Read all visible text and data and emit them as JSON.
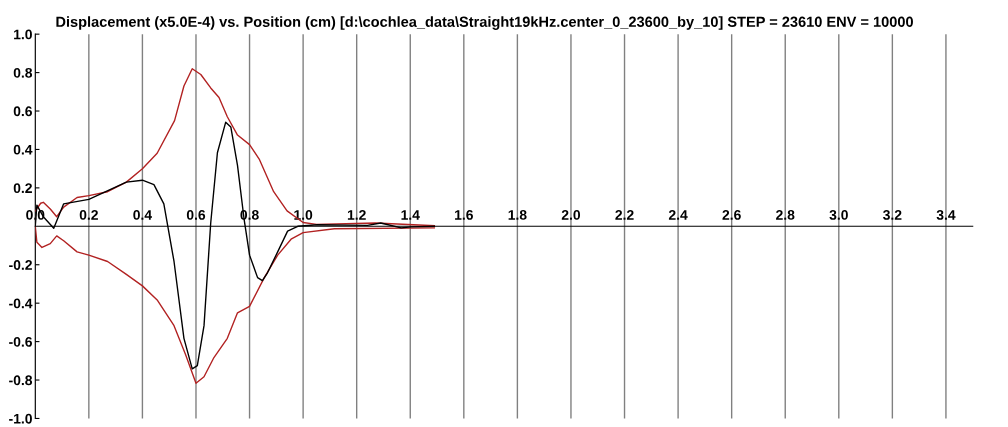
{
  "chart_data": {
    "type": "line",
    "title": "Displacement (x5.0E-4) vs. Position (cm) [d:\\cochlea_data\\Straight19kHz.center_0_23600_by_10] STEP = 23610 ENV = 10000",
    "xlim": [
      0,
      3.5
    ],
    "ylim": [
      -1,
      1
    ],
    "xticks": [
      {
        "value": 0,
        "label": "0.0"
      },
      0.2,
      0.4,
      0.6,
      0.8,
      {
        "value": 1,
        "label": "1.0"
      },
      1.2,
      1.4,
      1.6,
      1.8,
      {
        "value": 2,
        "label": "2.0"
      },
      2.2,
      2.4,
      2.6,
      2.8,
      {
        "value": 3,
        "label": "3.0"
      },
      3.2,
      3.4
    ],
    "yticks": [
      {
        "value": 1,
        "label": "1.0"
      },
      0.8,
      0.6,
      0.4,
      0.2,
      -0.2,
      -0.4,
      -0.6,
      -0.8,
      {
        "value": -1,
        "label": "-1.0"
      }
    ],
    "grid": "x",
    "line_style": "solid",
    "marker": "none",
    "series": [
      {
        "color": "#b22222",
        "x": [
          0,
          0.02,
          0.03,
          0.056,
          0.08,
          0.106,
          0.156,
          0.2,
          0.27,
          0.34,
          0.4,
          0.455,
          0.52,
          0.555,
          0.586,
          0.618,
          0.655,
          0.686,
          0.717,
          0.755,
          0.8,
          0.836,
          0.89,
          0.94,
          1.0,
          1.05,
          1.27,
          1.49
        ],
        "values": [
          0.08,
          0.12,
          0.125,
          0.09,
          0.05,
          0.1,
          0.15,
          0.16,
          0.18,
          0.23,
          0.3,
          0.38,
          0.55,
          0.73,
          0.82,
          0.79,
          0.72,
          0.67,
          0.57,
          0.475,
          0.425,
          0.35,
          0.18,
          0.08,
          0.02,
          0.01,
          0.017,
          0.003
        ]
      },
      {
        "color": "#b22222",
        "x": [
          0,
          0.006,
          0.025,
          0.056,
          0.08,
          0.106,
          0.156,
          0.2,
          0.27,
          0.34,
          0.4,
          0.455,
          0.518,
          0.561,
          0.6,
          0.63,
          0.667,
          0.717,
          0.755,
          0.8,
          0.855,
          0.905,
          0.955,
          1.0,
          1.117,
          1.49
        ],
        "values": [
          0,
          -0.083,
          -0.11,
          -0.09,
          -0.05,
          -0.075,
          -0.133,
          -0.15,
          -0.183,
          -0.25,
          -0.31,
          -0.383,
          -0.517,
          -0.667,
          -0.817,
          -0.783,
          -0.683,
          -0.583,
          -0.45,
          -0.417,
          -0.267,
          -0.15,
          -0.067,
          -0.033,
          -0.013,
          -0.008
        ]
      },
      {
        "color": "#000000",
        "x": [
          0,
          0.006,
          0.03,
          0.069,
          0.106,
          0.2,
          0.34,
          0.4,
          0.443,
          0.48,
          0.518,
          0.555,
          0.586,
          0.605,
          0.63,
          0.655,
          0.68,
          0.711,
          0.73,
          0.755,
          0.78,
          0.8,
          0.83,
          0.848,
          0.867,
          0.905,
          0.942,
          0.98,
          1.054,
          1.24,
          1.29,
          1.366,
          1.404,
          1.49
        ],
        "values": [
          0,
          0.11,
          0.05,
          -0.01,
          0.117,
          0.14,
          0.23,
          0.24,
          0.217,
          0.117,
          -0.183,
          -0.583,
          -0.742,
          -0.725,
          -0.517,
          0.017,
          0.383,
          0.542,
          0.517,
          0.317,
          0.033,
          -0.15,
          -0.267,
          -0.283,
          -0.242,
          -0.133,
          -0.025,
          0,
          0.008,
          0.005,
          0.017,
          -0.008,
          -0.003,
          0
        ]
      }
    ]
  }
}
